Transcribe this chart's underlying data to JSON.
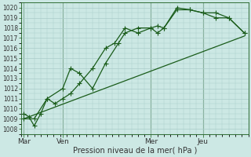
{
  "xlabel": "Pression niveau de la mer( hPa )",
  "background_color": "#cce8e4",
  "grid_color": "#aaccca",
  "line_color": "#1a5c1a",
  "ylim": [
    1007.5,
    1020.5
  ],
  "xlim": [
    0,
    17.5
  ],
  "yticks": [
    1008,
    1009,
    1010,
    1011,
    1012,
    1013,
    1014,
    1015,
    1016,
    1017,
    1018,
    1019,
    1020
  ],
  "day_labels": [
    "Mar",
    "Ven",
    "Mer",
    "Jeu"
  ],
  "day_positions": [
    0.2,
    3.2,
    10.0,
    14.0
  ],
  "series": [
    {
      "x": [
        0.2,
        0.6,
        1.0,
        1.5,
        2.0,
        2.6,
        3.2,
        3.8,
        4.5,
        5.5,
        6.5,
        7.2,
        8.0,
        9.0,
        10.0,
        10.5,
        11.0,
        12.0,
        13.0,
        14.0,
        15.0,
        16.0,
        17.2
      ],
      "y": [
        1009.5,
        1009.2,
        1008.3,
        1009.5,
        1011.0,
        1010.5,
        1011.0,
        1011.5,
        1012.5,
        1014.0,
        1016.0,
        1016.5,
        1018.0,
        1017.5,
        1018.0,
        1018.2,
        1018.0,
        1020.0,
        1019.8,
        1019.5,
        1019.5,
        1019.0,
        1017.5
      ],
      "marker": "+",
      "markersize": 4,
      "lw": 0.9
    },
    {
      "x": [
        0.2,
        1.0,
        2.0,
        3.2,
        3.8,
        4.5,
        5.5,
        6.5,
        7.5,
        8.0,
        9.0,
        10.0,
        10.5,
        11.0,
        12.0,
        13.0,
        14.0,
        15.0,
        16.0,
        17.2
      ],
      "y": [
        1009.0,
        1009.0,
        1011.0,
        1012.0,
        1014.0,
        1013.5,
        1012.0,
        1014.5,
        1016.5,
        1017.5,
        1018.0,
        1018.0,
        1017.5,
        1018.0,
        1019.8,
        1019.8,
        1019.5,
        1019.0,
        1019.0,
        1017.5
      ],
      "marker": "+",
      "markersize": 4,
      "lw": 0.9
    },
    {
      "x": [
        0.2,
        17.2
      ],
      "y": [
        1009.0,
        1017.2
      ],
      "marker": null,
      "markersize": 0,
      "lw": 0.9
    }
  ],
  "xlabel_fontsize": 7.0,
  "xtick_fontsize": 6.5,
  "ytick_fontsize": 5.5
}
